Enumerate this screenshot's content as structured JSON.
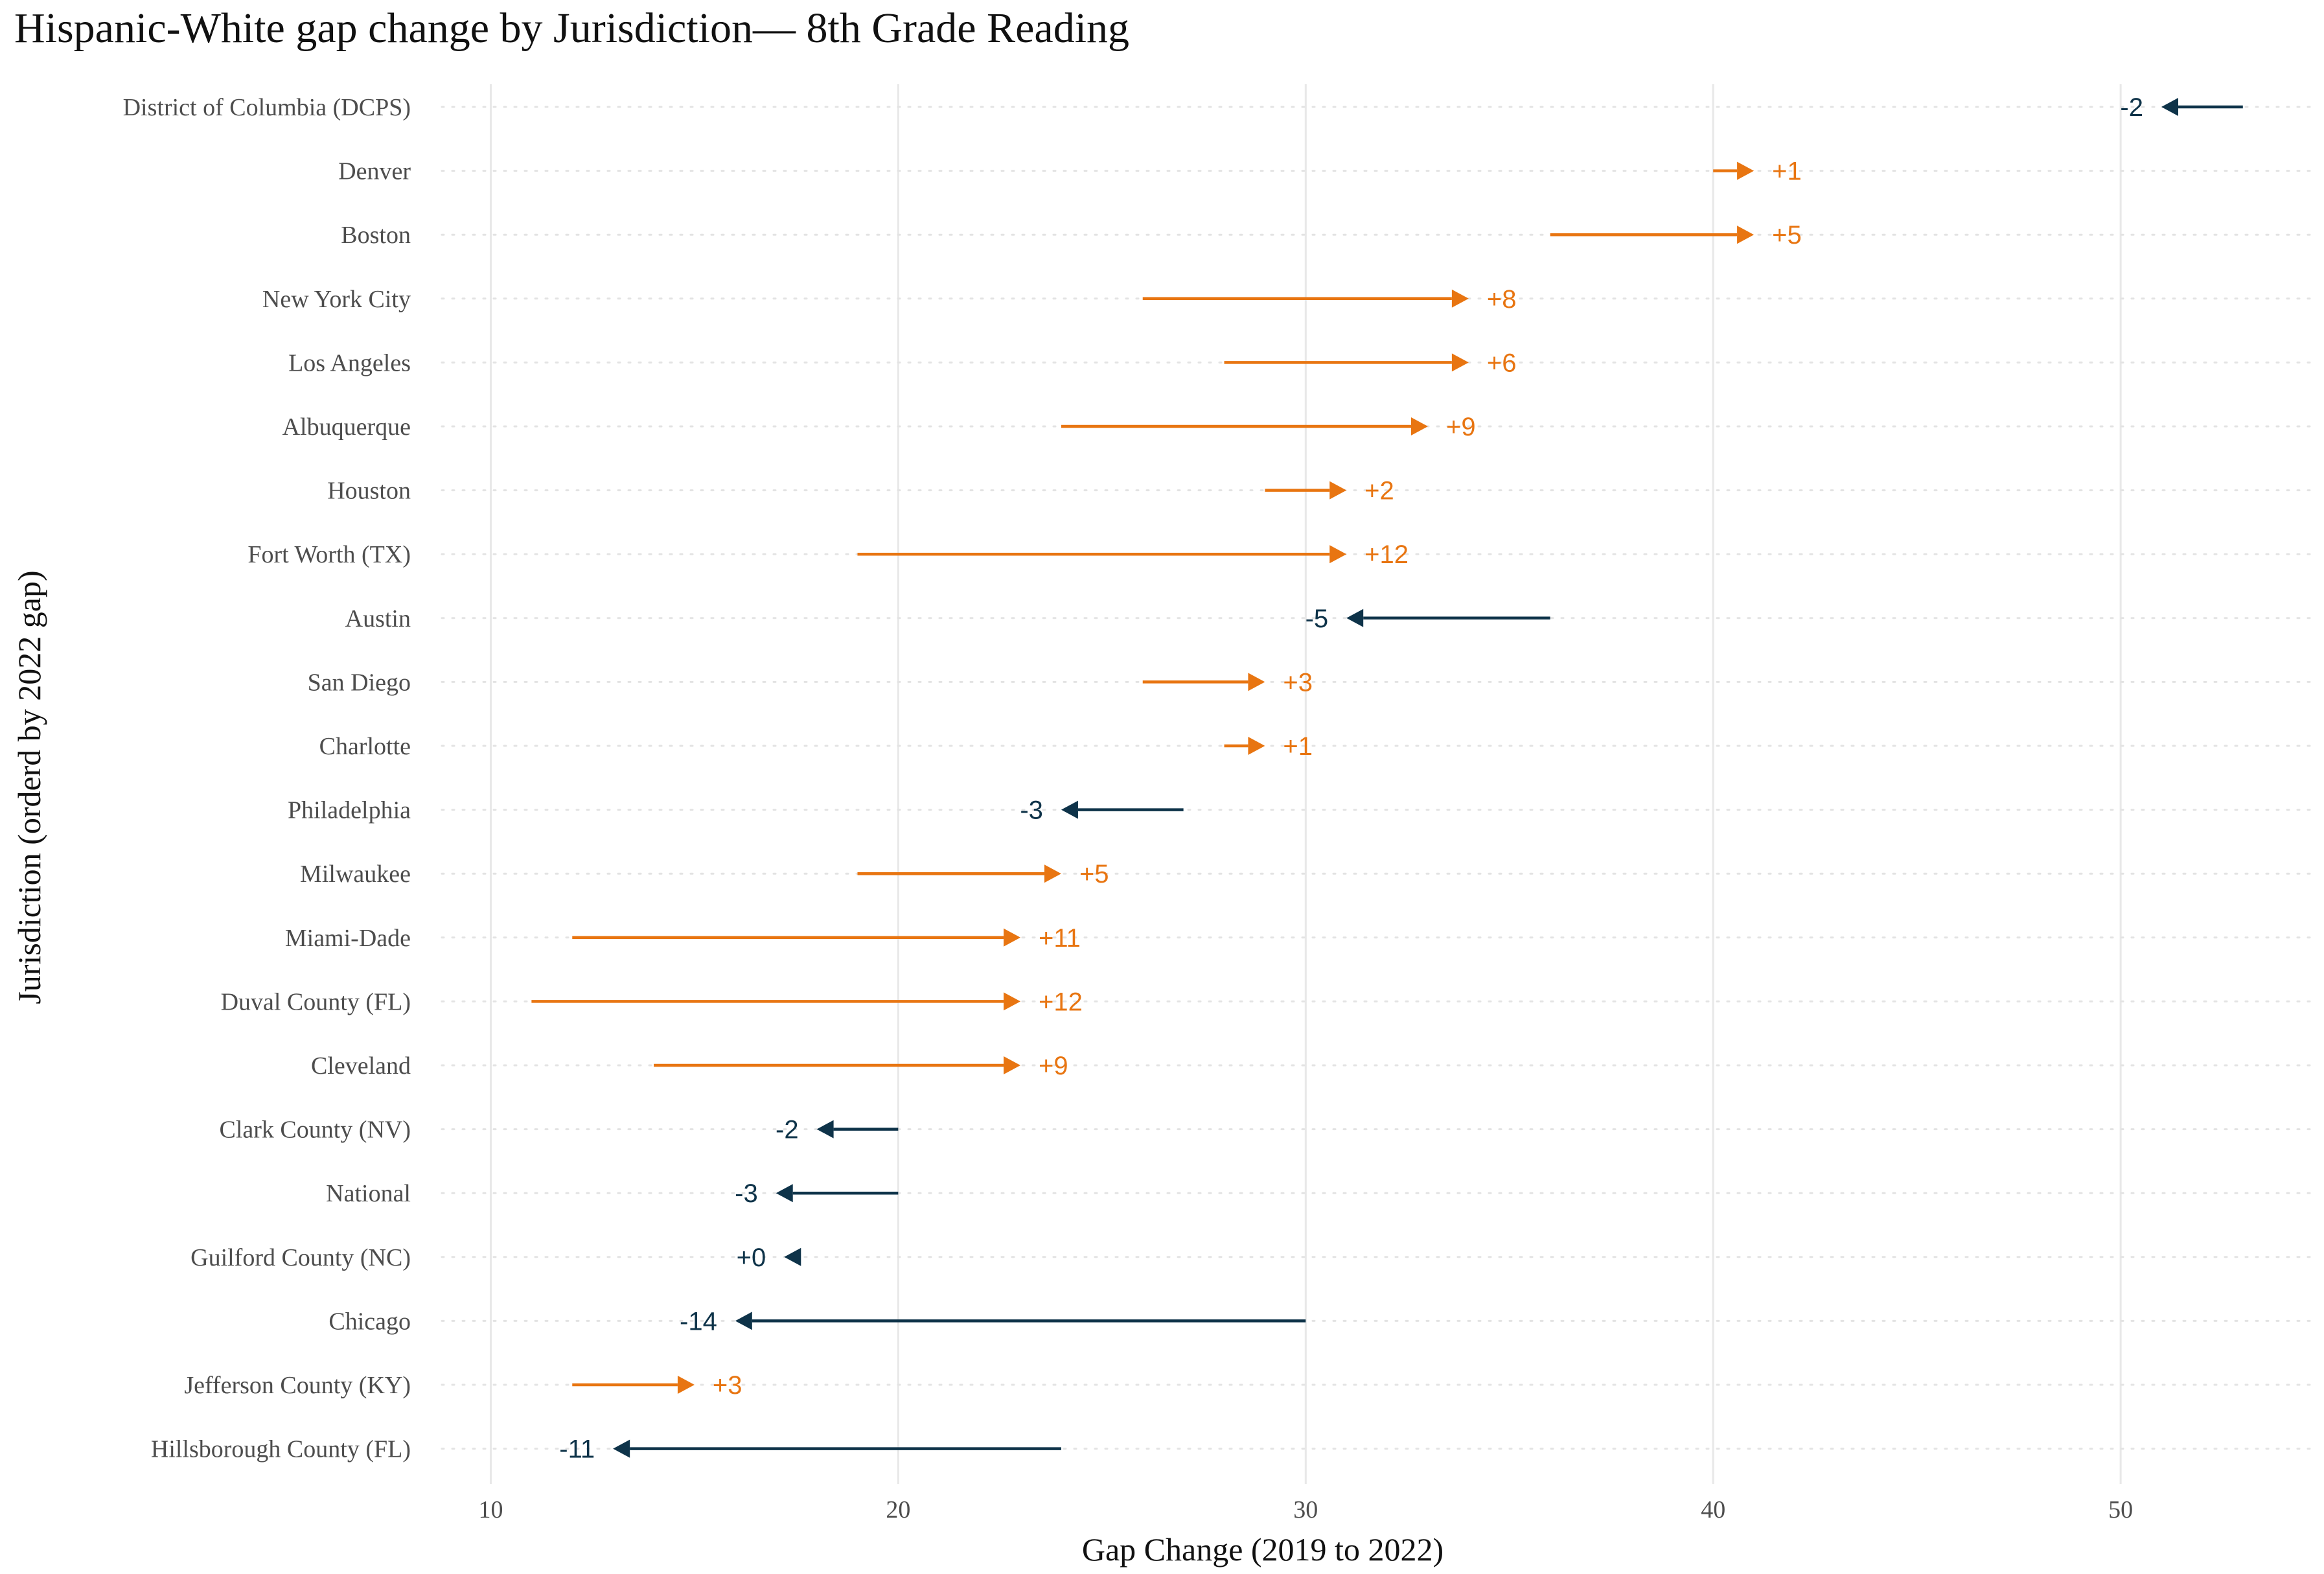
{
  "chart_data": {
    "type": "arrow-dot",
    "title": "Hispanic-White gap change by Jurisdiction— 8th Grade Reading",
    "xlabel": "Gap Change (2019 to 2022)",
    "ylabel": "Jurisdiction (orderd by 2022 gap)",
    "xlim": [
      8.8,
      54.8
    ],
    "xticks": [
      10,
      20,
      30,
      40,
      50
    ],
    "grid": "vertical-major, horizontal-dotted",
    "colors": {
      "increase": "#E87511",
      "decrease": "#0E3349",
      "grid": "#E8E8E8",
      "row_grid": "#E3E3E3"
    },
    "rows": [
      {
        "name": "District of Columbia (DCPS)",
        "gap_2019": 53,
        "gap_2022": 51,
        "label": "-2"
      },
      {
        "name": "Denver",
        "gap_2019": 40,
        "gap_2022": 41,
        "label": "+1"
      },
      {
        "name": "Boston",
        "gap_2019": 36,
        "gap_2022": 41,
        "label": "+5"
      },
      {
        "name": "New York City",
        "gap_2019": 26,
        "gap_2022": 34,
        "label": "+8"
      },
      {
        "name": "Los Angeles",
        "gap_2019": 28,
        "gap_2022": 34,
        "label": "+6"
      },
      {
        "name": "Albuquerque",
        "gap_2019": 24,
        "gap_2022": 33,
        "label": "+9"
      },
      {
        "name": "Houston",
        "gap_2019": 29,
        "gap_2022": 31,
        "label": "+2"
      },
      {
        "name": "Fort Worth (TX)",
        "gap_2019": 19,
        "gap_2022": 31,
        "label": "+12"
      },
      {
        "name": "Austin",
        "gap_2019": 36,
        "gap_2022": 31,
        "label": "-5"
      },
      {
        "name": "San Diego",
        "gap_2019": 26,
        "gap_2022": 29,
        "label": "+3"
      },
      {
        "name": "Charlotte",
        "gap_2019": 28,
        "gap_2022": 29,
        "label": "+1"
      },
      {
        "name": "Philadelphia",
        "gap_2019": 27,
        "gap_2022": 24,
        "label": "-3"
      },
      {
        "name": "Milwaukee",
        "gap_2019": 19,
        "gap_2022": 24,
        "label": "+5"
      },
      {
        "name": "Miami-Dade",
        "gap_2019": 12,
        "gap_2022": 23,
        "label": "+11"
      },
      {
        "name": "Duval County (FL)",
        "gap_2019": 11,
        "gap_2022": 23,
        "label": "+12"
      },
      {
        "name": "Cleveland",
        "gap_2019": 14,
        "gap_2022": 23,
        "label": "+9"
      },
      {
        "name": "Clark County (NV)",
        "gap_2019": 20,
        "gap_2022": 18,
        "label": "-2"
      },
      {
        "name": "National",
        "gap_2019": 20,
        "gap_2022": 17,
        "label": "-3"
      },
      {
        "name": "Guilford County (NC)",
        "gap_2019": 17.5,
        "gap_2022": 17.2,
        "label": "+0"
      },
      {
        "name": "Chicago",
        "gap_2019": 30,
        "gap_2022": 16,
        "label": "-14"
      },
      {
        "name": "Jefferson County (KY)",
        "gap_2019": 12,
        "gap_2022": 15,
        "label": "+3"
      },
      {
        "name": "Hillsborough County (FL)",
        "gap_2019": 24,
        "gap_2022": 13,
        "label": "-11"
      }
    ]
  }
}
